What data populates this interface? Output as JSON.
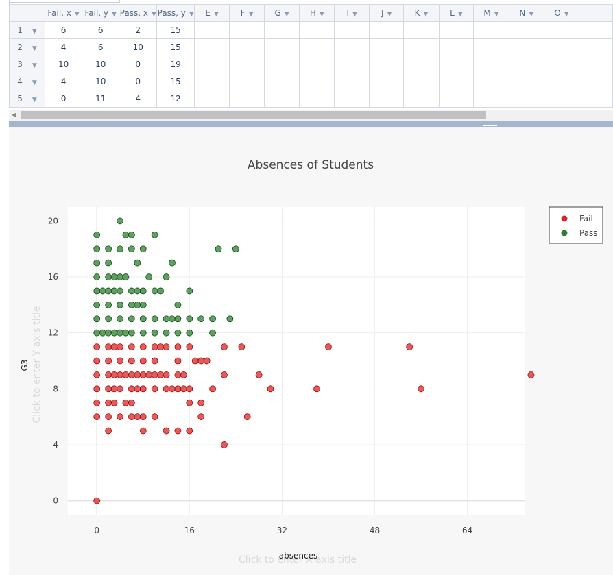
{
  "sheet": {
    "columns": [
      "Fail, x",
      "Fail, y",
      "Pass, x",
      "Pass, y",
      "E",
      "F",
      "G",
      "H",
      "I",
      "J",
      "K",
      "L",
      "M",
      "N",
      "O"
    ],
    "rows": [
      {
        "num": "1",
        "cells": [
          "6",
          "6",
          "2",
          "15"
        ]
      },
      {
        "num": "2",
        "cells": [
          "4",
          "6",
          "10",
          "15"
        ]
      },
      {
        "num": "3",
        "cells": [
          "10",
          "10",
          "0",
          "19"
        ]
      },
      {
        "num": "4",
        "cells": [
          "4",
          "10",
          "0",
          "15"
        ]
      },
      {
        "num": "5",
        "cells": [
          "0",
          "11",
          "4",
          "12"
        ]
      }
    ]
  },
  "colors": {
    "fail": "#d62728",
    "pass": "#2f7d32",
    "fail_dark": "#b20000",
    "pass_dark": "#0b4f10"
  },
  "chart_data": {
    "type": "scatter",
    "title": "Absences of Students",
    "xlabel": "absences",
    "ylabel": "G3",
    "x_placeholder": "Click to enter X axis title",
    "y_placeholder": "Click to enter Y axis title",
    "xlim": [
      -5,
      74
    ],
    "ylim": [
      -1,
      21
    ],
    "x_ticks": [
      0,
      16,
      32,
      48,
      64
    ],
    "y_ticks": [
      0,
      4,
      8,
      12,
      16,
      20
    ],
    "legend_position": "top-right",
    "grid": true,
    "series": [
      {
        "name": "Fail",
        "points": [
          [
            0,
            0
          ],
          [
            0,
            6
          ],
          [
            0,
            7
          ],
          [
            0,
            8
          ],
          [
            0,
            9
          ],
          [
            0,
            10
          ],
          [
            0,
            11
          ],
          [
            2,
            5
          ],
          [
            2,
            6
          ],
          [
            2,
            7
          ],
          [
            2,
            8
          ],
          [
            2,
            9
          ],
          [
            2,
            10
          ],
          [
            2,
            11
          ],
          [
            3,
            7
          ],
          [
            3,
            8
          ],
          [
            3,
            9
          ],
          [
            3,
            11
          ],
          [
            4,
            6
          ],
          [
            4,
            8
          ],
          [
            4,
            9
          ],
          [
            4,
            10
          ],
          [
            4,
            11
          ],
          [
            5,
            7
          ],
          [
            5,
            9
          ],
          [
            6,
            6
          ],
          [
            6,
            7
          ],
          [
            6,
            8
          ],
          [
            6,
            9
          ],
          [
            6,
            10
          ],
          [
            6,
            11
          ],
          [
            7,
            6
          ],
          [
            7,
            8
          ],
          [
            7,
            9
          ],
          [
            8,
            5
          ],
          [
            8,
            6
          ],
          [
            8,
            8
          ],
          [
            8,
            9
          ],
          [
            8,
            10
          ],
          [
            8,
            11
          ],
          [
            9,
            9
          ],
          [
            10,
            6
          ],
          [
            10,
            8
          ],
          [
            10,
            9
          ],
          [
            10,
            10
          ],
          [
            10,
            11
          ],
          [
            11,
            9
          ],
          [
            11,
            11
          ],
          [
            12,
            5
          ],
          [
            12,
            8
          ],
          [
            12,
            9
          ],
          [
            12,
            11
          ],
          [
            13,
            8
          ],
          [
            14,
            5
          ],
          [
            14,
            8
          ],
          [
            14,
            9
          ],
          [
            14,
            10
          ],
          [
            14,
            11
          ],
          [
            15,
            8
          ],
          [
            15,
            9
          ],
          [
            16,
            5
          ],
          [
            16,
            7
          ],
          [
            16,
            8
          ],
          [
            16,
            11
          ],
          [
            17,
            10
          ],
          [
            18,
            6
          ],
          [
            18,
            7
          ],
          [
            18,
            10
          ],
          [
            19,
            10
          ],
          [
            20,
            8
          ],
          [
            22,
            4
          ],
          [
            22,
            9
          ],
          [
            22,
            11
          ],
          [
            25,
            11
          ],
          [
            26,
            6
          ],
          [
            28,
            9
          ],
          [
            30,
            8
          ],
          [
            38,
            8
          ],
          [
            40,
            11
          ],
          [
            54,
            11
          ],
          [
            56,
            8
          ],
          [
            75,
            9
          ]
        ]
      },
      {
        "name": "Pass",
        "points": [
          [
            0,
            12
          ],
          [
            0,
            13
          ],
          [
            0,
            14
          ],
          [
            0,
            15
          ],
          [
            0,
            16
          ],
          [
            0,
            17
          ],
          [
            0,
            18
          ],
          [
            0,
            19
          ],
          [
            1,
            12
          ],
          [
            1,
            15
          ],
          [
            2,
            12
          ],
          [
            2,
            13
          ],
          [
            2,
            14
          ],
          [
            2,
            15
          ],
          [
            2,
            16
          ],
          [
            2,
            17
          ],
          [
            2,
            18
          ],
          [
            3,
            12
          ],
          [
            3,
            15
          ],
          [
            3,
            16
          ],
          [
            4,
            12
          ],
          [
            4,
            13
          ],
          [
            4,
            14
          ],
          [
            4,
            15
          ],
          [
            4,
            16
          ],
          [
            4,
            18
          ],
          [
            4,
            20
          ],
          [
            5,
            12
          ],
          [
            5,
            16
          ],
          [
            5,
            19
          ],
          [
            6,
            12
          ],
          [
            6,
            13
          ],
          [
            6,
            14
          ],
          [
            6,
            15
          ],
          [
            6,
            18
          ],
          [
            6,
            19
          ],
          [
            7,
            14
          ],
          [
            7,
            15
          ],
          [
            7,
            17
          ],
          [
            8,
            12
          ],
          [
            8,
            13
          ],
          [
            8,
            14
          ],
          [
            8,
            15
          ],
          [
            8,
            18
          ],
          [
            9,
            16
          ],
          [
            10,
            12
          ],
          [
            10,
            13
          ],
          [
            10,
            15
          ],
          [
            10,
            19
          ],
          [
            11,
            15
          ],
          [
            12,
            12
          ],
          [
            12,
            13
          ],
          [
            12,
            16
          ],
          [
            13,
            13
          ],
          [
            13,
            17
          ],
          [
            14,
            12
          ],
          [
            14,
            13
          ],
          [
            14,
            14
          ],
          [
            16,
            12
          ],
          [
            16,
            13
          ],
          [
            16,
            15
          ],
          [
            18,
            13
          ],
          [
            20,
            12
          ],
          [
            20,
            13
          ],
          [
            21,
            18
          ],
          [
            23,
            13
          ],
          [
            24,
            18
          ]
        ]
      }
    ]
  }
}
